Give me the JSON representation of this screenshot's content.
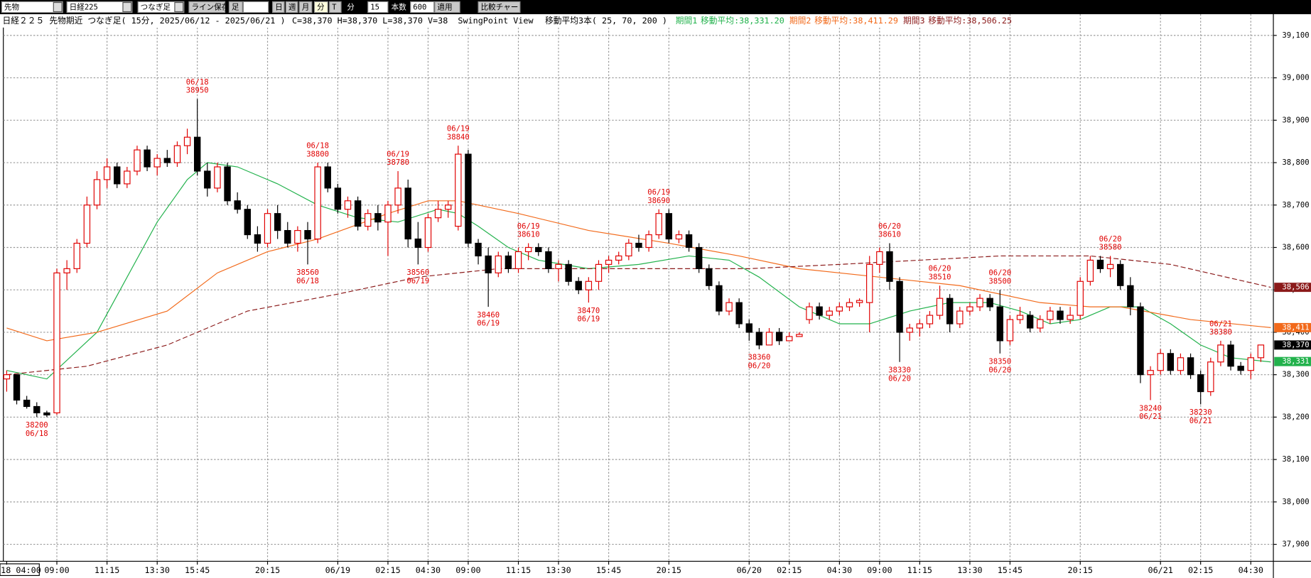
{
  "toolbar": {
    "items": [
      "先物",
      "日経225",
      "つなぎ足",
      "ライン保存",
      "足",
      "日",
      "週",
      "月",
      "分",
      "T",
      "分",
      "15",
      "本数",
      "600",
      "適用",
      "比較チャート"
    ]
  },
  "chart_data": {
    "type": "candlestick",
    "header": {
      "title": "日経２２５ 先物期近 つなぎ足( 15分, 2025/06/12 - 2025/06/21 )",
      "ohlcv": "C=38,370 H=38,370 L=38,370 V=38",
      "view": "SwingPoint View",
      "ma": "移動平均3本( 25, 70, 200 )"
    },
    "up_color": "#e00000",
    "down_color": "#000000",
    "candles": [
      [
        38290,
        38310,
        38260,
        38300
      ],
      [
        38300,
        38300,
        38230,
        38240
      ],
      [
        38240,
        38250,
        38220,
        38225
      ],
      [
        38225,
        38235,
        38200,
        38210
      ],
      [
        38210,
        38215,
        38200,
        38205
      ],
      [
        38210,
        38550,
        38205,
        38540
      ],
      [
        38540,
        38570,
        38500,
        38550
      ],
      [
        38550,
        38620,
        38540,
        38610
      ],
      [
        38610,
        38720,
        38600,
        38700
      ],
      [
        38700,
        38780,
        38690,
        38760
      ],
      [
        38760,
        38810,
        38740,
        38790
      ],
      [
        38790,
        38800,
        38740,
        38750
      ],
      [
        38750,
        38790,
        38740,
        38780
      ],
      [
        38780,
        38840,
        38770,
        38830
      ],
      [
        38830,
        38840,
        38780,
        38790
      ],
      [
        38790,
        38820,
        38770,
        38810
      ],
      [
        38810,
        38830,
        38790,
        38800
      ],
      [
        38800,
        38850,
        38790,
        38840
      ],
      [
        38840,
        38880,
        38820,
        38860
      ],
      [
        38860,
        38950,
        38770,
        38780
      ],
      [
        38780,
        38800,
        38720,
        38740
      ],
      [
        38740,
        38800,
        38730,
        38790
      ],
      [
        38790,
        38800,
        38700,
        38710
      ],
      [
        38710,
        38730,
        38680,
        38690
      ],
      [
        38690,
        38700,
        38620,
        38630
      ],
      [
        38630,
        38650,
        38590,
        38610
      ],
      [
        38610,
        38690,
        38600,
        38680
      ],
      [
        38680,
        38700,
        38620,
        38640
      ],
      [
        38640,
        38660,
        38600,
        38610
      ],
      [
        38610,
        38650,
        38590,
        38640
      ],
      [
        38640,
        38660,
        38560,
        38620
      ],
      [
        38620,
        38800,
        38610,
        38790
      ],
      [
        38790,
        38800,
        38730,
        38740
      ],
      [
        38740,
        38750,
        38680,
        38690
      ],
      [
        38690,
        38720,
        38670,
        38710
      ],
      [
        38710,
        38720,
        38640,
        38650
      ],
      [
        38650,
        38690,
        38640,
        38680
      ],
      [
        38680,
        38700,
        38640,
        38660
      ],
      [
        38660,
        38710,
        38580,
        38700
      ],
      [
        38700,
        38780,
        38680,
        38740
      ],
      [
        38740,
        38760,
        38600,
        38620
      ],
      [
        38620,
        38660,
        38560,
        38600
      ],
      [
        38600,
        38680,
        38590,
        38670
      ],
      [
        38670,
        38710,
        38660,
        38690
      ],
      [
        38690,
        38710,
        38670,
        38700
      ],
      [
        38650,
        38840,
        38640,
        38820
      ],
      [
        38820,
        38830,
        38600,
        38610
      ],
      [
        38610,
        38620,
        38560,
        38580
      ],
      [
        38580,
        38600,
        38460,
        38540
      ],
      [
        38540,
        38590,
        38530,
        38580
      ],
      [
        38580,
        38590,
        38540,
        38550
      ],
      [
        38550,
        38600,
        38540,
        38590
      ],
      [
        38590,
        38610,
        38570,
        38600
      ],
      [
        38600,
        38610,
        38580,
        38590
      ],
      [
        38590,
        38600,
        38540,
        38550
      ],
      [
        38550,
        38570,
        38520,
        38560
      ],
      [
        38560,
        38570,
        38510,
        38520
      ],
      [
        38520,
        38530,
        38490,
        38500
      ],
      [
        38500,
        38530,
        38470,
        38520
      ],
      [
        38520,
        38570,
        38500,
        38560
      ],
      [
        38560,
        38580,
        38540,
        38570
      ],
      [
        38570,
        38590,
        38560,
        38580
      ],
      [
        38580,
        38620,
        38570,
        38610
      ],
      [
        38610,
        38630,
        38590,
        38600
      ],
      [
        38600,
        38640,
        38590,
        38630
      ],
      [
        38630,
        38690,
        38620,
        38680
      ],
      [
        38680,
        38690,
        38610,
        38620
      ],
      [
        38620,
        38640,
        38610,
        38630
      ],
      [
        38630,
        38640,
        38590,
        38600
      ],
      [
        38600,
        38610,
        38540,
        38550
      ],
      [
        38550,
        38560,
        38500,
        38510
      ],
      [
        38510,
        38520,
        38440,
        38450
      ],
      [
        38450,
        38480,
        38440,
        38470
      ],
      [
        38470,
        38480,
        38410,
        38420
      ],
      [
        38420,
        38430,
        38380,
        38400
      ],
      [
        38400,
        38410,
        38360,
        38370
      ],
      [
        38370,
        38410,
        38370,
        38400
      ],
      [
        38400,
        38410,
        38370,
        38380
      ],
      [
        38380,
        38400,
        38380,
        38390
      ],
      [
        38390,
        38400,
        38390,
        38395
      ],
      [
        38430,
        38470,
        38420,
        38460
      ],
      [
        38460,
        38470,
        38430,
        38440
      ],
      [
        38440,
        38460,
        38430,
        38450
      ],
      [
        38450,
        38470,
        38440,
        38460
      ],
      [
        38460,
        38480,
        38450,
        38470
      ],
      [
        38470,
        38480,
        38460,
        38475
      ],
      [
        38470,
        38580,
        38400,
        38560
      ],
      [
        38560,
        38600,
        38540,
        38590
      ],
      [
        38590,
        38610,
        38500,
        38520
      ],
      [
        38520,
        38530,
        38330,
        38400
      ],
      [
        38400,
        38420,
        38380,
        38410
      ],
      [
        38410,
        38430,
        38390,
        38420
      ],
      [
        38420,
        38450,
        38410,
        38440
      ],
      [
        38440,
        38510,
        38430,
        38480
      ],
      [
        38480,
        38490,
        38400,
        38420
      ],
      [
        38420,
        38460,
        38410,
        38450
      ],
      [
        38450,
        38470,
        38440,
        38460
      ],
      [
        38460,
        38490,
        38450,
        38480
      ],
      [
        38480,
        38490,
        38450,
        38460
      ],
      [
        38460,
        38500,
        38350,
        38380
      ],
      [
        38380,
        38440,
        38370,
        38430
      ],
      [
        38430,
        38460,
        38420,
        38440
      ],
      [
        38440,
        38450,
        38400,
        38410
      ],
      [
        38410,
        38440,
        38400,
        38430
      ],
      [
        38430,
        38460,
        38420,
        38450
      ],
      [
        38450,
        38460,
        38420,
        38430
      ],
      [
        38430,
        38460,
        38420,
        38440
      ],
      [
        38440,
        38530,
        38430,
        38520
      ],
      [
        38520,
        38580,
        38510,
        38570
      ],
      [
        38570,
        38580,
        38540,
        38550
      ],
      [
        38550,
        38580,
        38530,
        38560
      ],
      [
        38560,
        38570,
        38500,
        38510
      ],
      [
        38510,
        38530,
        38440,
        38460
      ],
      [
        38460,
        38470,
        38280,
        38300
      ],
      [
        38300,
        38320,
        38240,
        38310
      ],
      [
        38310,
        38360,
        38300,
        38350
      ],
      [
        38350,
        38360,
        38300,
        38310
      ],
      [
        38310,
        38350,
        38300,
        38340
      ],
      [
        38340,
        38350,
        38290,
        38300
      ],
      [
        38300,
        38310,
        38230,
        38260
      ],
      [
        38260,
        38340,
        38250,
        38330
      ],
      [
        38330,
        38380,
        38320,
        38370
      ],
      [
        38370,
        38380,
        38310,
        38320
      ],
      [
        38320,
        38330,
        38300,
        38310
      ],
      [
        38310,
        38350,
        38290,
        38340
      ],
      [
        38340,
        38370,
        38330,
        38370
      ]
    ],
    "moving_averages": [
      {
        "name": "期間1",
        "label": "移動平均:38,331.20",
        "color": "#22b24c",
        "dashed": false,
        "x": [
          0,
          4,
          9,
          12,
          15,
          18,
          20,
          23,
          27,
          31,
          35,
          39,
          43,
          45,
          47,
          50,
          53,
          58,
          63,
          68,
          72,
          75,
          79,
          83,
          86,
          90,
          94,
          98,
          101,
          104,
          107,
          110,
          113,
          116,
          119,
          122,
          126
        ],
        "values": [
          38310,
          38290,
          38400,
          38530,
          38660,
          38760,
          38800,
          38790,
          38750,
          38700,
          38670,
          38660,
          38690,
          38680,
          38650,
          38600,
          38570,
          38550,
          38560,
          38580,
          38570,
          38530,
          38460,
          38420,
          38420,
          38450,
          38470,
          38470,
          38450,
          38420,
          38430,
          38460,
          38460,
          38420,
          38370,
          38340,
          38330
        ]
      },
      {
        "name": "期間2",
        "label": "移動平均:38,411.29",
        "color": "#f26a1b",
        "dashed": false,
        "x": [
          0,
          4,
          9,
          16,
          21,
          26,
          31,
          38,
          42,
          45,
          51,
          58,
          66,
          73,
          79,
          87,
          95,
          103,
          108,
          111,
          118,
          126
        ],
        "values": [
          38410,
          38380,
          38400,
          38450,
          38540,
          38590,
          38620,
          38680,
          38710,
          38710,
          38680,
          38640,
          38610,
          38580,
          38550,
          38530,
          38510,
          38470,
          38460,
          38460,
          38430,
          38411
        ]
      },
      {
        "name": "期間3",
        "label": "移動平均:38,506.25",
        "color": "#8b1a1a",
        "dashed": true,
        "x": [
          0,
          8,
          16,
          24,
          33,
          41,
          49,
          66,
          74,
          83,
          91,
          99,
          108,
          116,
          126
        ],
        "values": [
          38300,
          38320,
          38370,
          38450,
          38490,
          38530,
          38550,
          38550,
          38550,
          38560,
          38570,
          38580,
          38580,
          38560,
          38506
        ]
      }
    ],
    "annotations": [
      {
        "candle": 3,
        "date": "06/18",
        "value": 38200,
        "position": "below"
      },
      {
        "candle": 19,
        "date": "06/18",
        "value": 38950,
        "position": "above"
      },
      {
        "candle": 31,
        "date": "06/18",
        "value": 38800,
        "position": "above"
      },
      {
        "candle": 30,
        "date": "06/18",
        "value": 38560,
        "position": "below"
      },
      {
        "candle": 39,
        "date": "06/19",
        "value": 38780,
        "position": "above"
      },
      {
        "candle": 41,
        "date": "06/19",
        "value": 38560,
        "position": "below"
      },
      {
        "candle": 45,
        "date": "06/19",
        "value": 38840,
        "position": "above"
      },
      {
        "candle": 48,
        "date": "06/19",
        "value": 38460,
        "position": "below"
      },
      {
        "candle": 52,
        "date": "06/19",
        "value": 38610,
        "position": "above"
      },
      {
        "candle": 58,
        "date": "06/19",
        "value": 38470,
        "position": "below"
      },
      {
        "candle": 65,
        "date": "06/19",
        "value": 38690,
        "position": "above"
      },
      {
        "candle": 75,
        "date": "06/20",
        "value": 38360,
        "position": "below"
      },
      {
        "candle": 88,
        "date": "06/20",
        "value": 38610,
        "position": "above"
      },
      {
        "candle": 89,
        "date": "06/20",
        "value": 38330,
        "position": "below"
      },
      {
        "candle": 93,
        "date": "06/20",
        "value": 38510,
        "position": "above"
      },
      {
        "candle": 99,
        "date": "06/20",
        "value": 38500,
        "position": "above"
      },
      {
        "candle": 99,
        "date": "06/20",
        "value": 38350,
        "position": "below"
      },
      {
        "candle": 110,
        "date": "06/20",
        "value": 38580,
        "position": "above"
      },
      {
        "candle": 114,
        "date": "06/21",
        "value": 38240,
        "position": "below"
      },
      {
        "candle": 119,
        "date": "06/21",
        "value": 38230,
        "position": "below"
      },
      {
        "candle": 121,
        "date": "06/21",
        "value": 38380,
        "position": "above"
      }
    ],
    "value_tags": [
      {
        "value": 38506,
        "label": "38,506",
        "color": "#8b1a1a"
      },
      {
        "value": 38411,
        "label": "38,411",
        "color": "#f26a1b"
      },
      {
        "value": 38331,
        "label": "38,331",
        "color": "#22b24c"
      },
      {
        "value": 38370,
        "label": "38,370",
        "color": "#000000"
      }
    ],
    "ylim": [
      37860,
      39150
    ],
    "yticks": [
      {
        "value": 37900,
        "label": "37,900"
      },
      {
        "value": 38000,
        "label": "38,000"
      },
      {
        "value": 38100,
        "label": "38,100"
      },
      {
        "value": 38200,
        "label": "38,200"
      },
      {
        "value": 38300,
        "label": "38,300"
      },
      {
        "value": 38400,
        "label": "38,400"
      },
      {
        "value": 38500,
        "label": "38,500"
      },
      {
        "value": 38600,
        "label": "38,600"
      },
      {
        "value": 38700,
        "label": "38,700"
      },
      {
        "value": 38800,
        "label": "38,800"
      },
      {
        "value": 38900,
        "label": "38,900"
      },
      {
        "value": 39000,
        "label": "39,000"
      },
      {
        "value": 39100,
        "label": "39,100"
      }
    ],
    "xticks": [
      {
        "value": 0,
        "label": "18 04:00"
      },
      {
        "value": 5,
        "label": "09:00"
      },
      {
        "value": 10,
        "label": "11:15"
      },
      {
        "value": 15,
        "label": "13:30"
      },
      {
        "value": 19,
        "label": "15:45"
      },
      {
        "value": 26,
        "label": "20:15"
      },
      {
        "value": 33,
        "label": "06/19"
      },
      {
        "value": 38,
        "label": "02:15"
      },
      {
        "value": 42,
        "label": "04:30"
      },
      {
        "value": 46,
        "label": "09:00"
      },
      {
        "value": 51,
        "label": "11:15"
      },
      {
        "value": 55,
        "label": "13:30"
      },
      {
        "value": 60,
        "label": "15:45"
      },
      {
        "value": 66,
        "label": "20:15"
      },
      {
        "value": 74,
        "label": "06/20"
      },
      {
        "value": 78,
        "label": "02:15"
      },
      {
        "value": 83,
        "label": "04:30"
      },
      {
        "value": 87,
        "label": "09:00"
      },
      {
        "value": 91,
        "label": "11:15"
      },
      {
        "value": 96,
        "label": "13:30"
      },
      {
        "value": 100,
        "label": "15:45"
      },
      {
        "value": 107,
        "label": "20:15"
      },
      {
        "value": 115,
        "label": "06/21"
      },
      {
        "value": 119,
        "label": "02:15"
      },
      {
        "value": 124,
        "label": "04:30"
      }
    ],
    "grid": true
  }
}
